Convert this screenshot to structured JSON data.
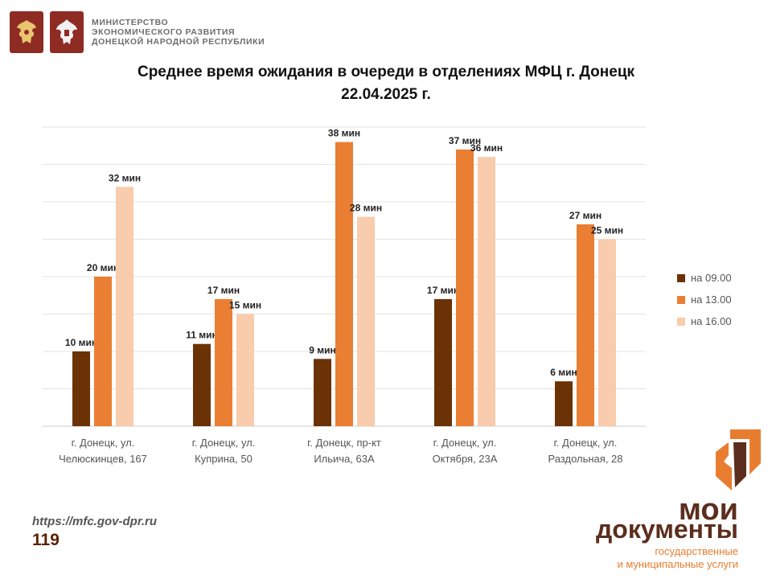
{
  "header": {
    "ministry_lines": [
      "МИНИСТЕРСТВО",
      "ЭКОНОМИЧЕСКОГО РАЗВИТИЯ",
      "ДОНЕЦКОЙ НАРОДНОЙ РЕСПУБЛИКИ"
    ]
  },
  "chart_data": {
    "type": "bar",
    "title_line1": "Среднее время ожидания в очереди в отделениях МФЦ г. Донецк",
    "title_line2": "22.04.2025 г.",
    "categories": [
      [
        "г. Донецк, ул.",
        "Челюскинцев, 167"
      ],
      [
        "г. Донецк, ул.",
        "Куприна, 50"
      ],
      [
        "г. Донецк, пр-кт",
        "Ильича, 63А"
      ],
      [
        "г. Донецк, ул.",
        "Октября, 23А"
      ],
      [
        "г. Донецк, ул.",
        "Раздольная, 28"
      ]
    ],
    "series": [
      {
        "name": "на 09.00",
        "color": "#6b3206",
        "values": [
          10,
          11,
          9,
          17,
          6
        ]
      },
      {
        "name": "на 13.00",
        "color": "#ea7f33",
        "values": [
          20,
          17,
          38,
          37,
          27
        ]
      },
      {
        "name": "на 16.00",
        "color": "#f8ccac",
        "values": [
          32,
          15,
          28,
          36,
          25
        ]
      }
    ],
    "value_suffix": " мин",
    "ylim": [
      0,
      40
    ],
    "grid": true,
    "legend_position": "right"
  },
  "footer": {
    "url": "https://mfc.gov-dpr.ru",
    "page_number": "119"
  },
  "brand": {
    "word1": "мои",
    "word2": "документы",
    "line1": "государственные",
    "line2": "и муниципальные услуги",
    "primary_color": "#e97d2f",
    "dark_color": "#5c2e1d"
  }
}
